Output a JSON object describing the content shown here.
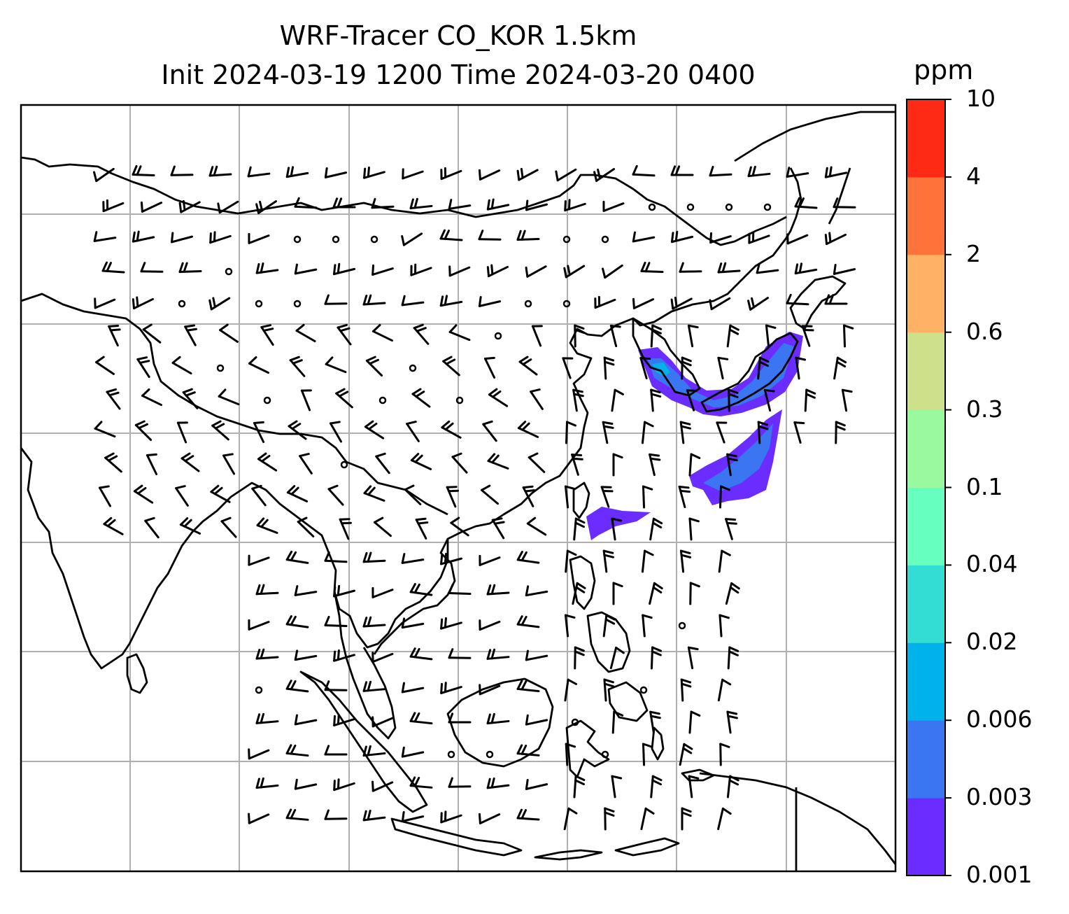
{
  "title": {
    "line1": "WRF-Tracer CO_KOR 1.5km",
    "line2": "Init 2024-03-19 1200 Time 2024-03-20 0400"
  },
  "colorbar": {
    "unit": "ppm",
    "ticks": [
      "0.001",
      "0.003",
      "0.006",
      "0.02",
      "0.04",
      "0.1",
      "0.3",
      "0.6",
      "2",
      "4",
      "10"
    ],
    "colors": [
      "#6a2cff",
      "#3a76f2",
      "#00b2ea",
      "#33ddd4",
      "#66ffbf",
      "#99f99e",
      "#cfe08a",
      "#ffb165",
      "#ff733b",
      "#ff2a16"
    ]
  },
  "map": {
    "coastline_color": "#000000",
    "grid_color": "#b0b0b0",
    "barb_color": "#000000",
    "tracer_colors": {
      "outer": "#6a2cff",
      "inner": "#3a76f2",
      "core": "#00b2ea"
    }
  }
}
